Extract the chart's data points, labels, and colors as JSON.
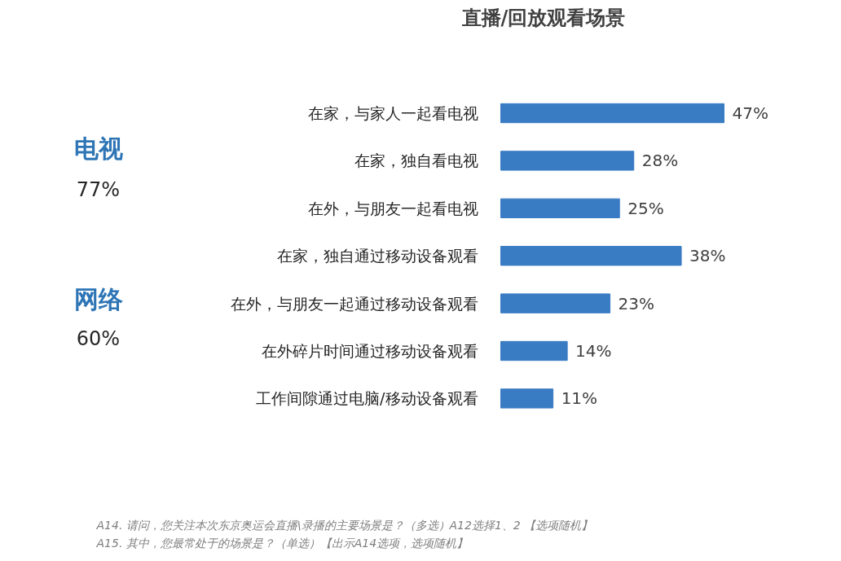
{
  "chart_data": {
    "type": "bar",
    "orientation": "horizontal",
    "title": "直播/回放观看场景",
    "categories": [
      "在家，与家人一起看电视",
      "在家，独自看电视",
      "在外，与朋友一起看电视",
      "在家，独自通过移动设备观看",
      "在外，与朋友一起通过移动设备观看",
      "在外碎片时间通过移动设备观看",
      "工作间隙通过电脑/移动设备观看"
    ],
    "values": [
      47,
      28,
      25,
      38,
      23,
      14,
      11
    ],
    "value_labels": [
      "47%",
      "28%",
      "25%",
      "38%",
      "23%",
      "14%",
      "11%"
    ],
    "color": "#3a7cc3",
    "grid": false,
    "annotations": [
      "电视",
      "77%",
      "网络",
      "60%",
      "A14. 请问，您关注本次东京奥运会直播\\录播的主要场景是？（多选）A12选择1、2 【选项随机】",
      "A15. 其中，您最常处于的场景是？（单选）【出示A14选项，选项随机】"
    ]
  }
}
